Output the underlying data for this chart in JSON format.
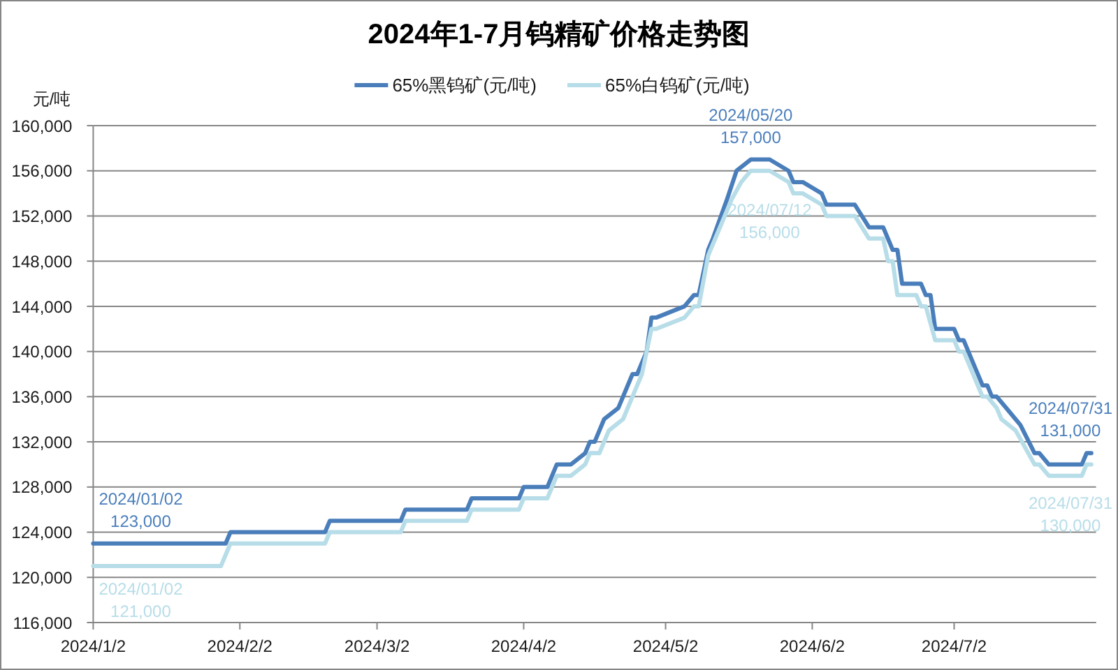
{
  "chart_data": {
    "type": "line",
    "title": "2024年1-7月钨精矿价格走势图",
    "ylabel": "元/吨",
    "series": [
      {
        "name": "65%黑钨矿(元/吨)",
        "color": "#4a7ebb",
        "x": [
          "2024-01-02",
          "2024-01-30",
          "2024-01-31",
          "2024-02-20",
          "2024-02-21",
          "2024-03-07",
          "2024-03-08",
          "2024-03-21",
          "2024-03-22",
          "2024-04-01",
          "2024-04-02",
          "2024-04-07",
          "2024-04-09",
          "2024-04-12",
          "2024-04-15",
          "2024-04-16",
          "2024-04-17",
          "2024-04-19",
          "2024-04-22",
          "2024-04-25",
          "2024-04-26",
          "2024-04-28",
          "2024-04-29",
          "2024-04-30",
          "2024-05-06",
          "2024-05-08",
          "2024-05-09",
          "2024-05-11",
          "2024-05-12",
          "2024-05-15",
          "2024-05-17",
          "2024-05-20",
          "2024-05-24",
          "2024-05-28",
          "2024-05-29",
          "2024-05-31",
          "2024-06-04",
          "2024-06-05",
          "2024-06-11",
          "2024-06-14",
          "2024-06-17",
          "2024-06-19",
          "2024-06-20",
          "2024-06-21",
          "2024-06-25",
          "2024-06-26",
          "2024-06-27",
          "2024-06-28",
          "2024-07-02",
          "2024-07-03",
          "2024-07-04",
          "2024-07-06",
          "2024-07-08",
          "2024-07-09",
          "2024-07-10",
          "2024-07-11",
          "2024-07-13",
          "2024-07-15",
          "2024-07-16",
          "2024-07-19",
          "2024-07-20",
          "2024-07-22",
          "2024-07-29",
          "2024-07-30",
          "2024-07-31"
        ],
        "values": [
          123000,
          123000,
          124000,
          124000,
          125000,
          125000,
          126000,
          126000,
          127000,
          127000,
          128000,
          128000,
          130000,
          130000,
          131000,
          132000,
          132000,
          134000,
          135000,
          138000,
          138000,
          140000,
          143000,
          143000,
          144000,
          145000,
          145000,
          149000,
          150000,
          153500,
          156000,
          157000,
          157000,
          156000,
          155000,
          155000,
          154000,
          153000,
          153000,
          151000,
          151000,
          149000,
          149000,
          146000,
          146000,
          145000,
          145000,
          142000,
          142000,
          141000,
          141000,
          139000,
          137000,
          137000,
          136000,
          136000,
          135000,
          134000,
          133500,
          131000,
          131000,
          130000,
          130000,
          131000,
          131000
        ]
      },
      {
        "name": "65%白钨矿(元/吨)",
        "color": "#b7dde8",
        "x": [
          "2024-01-02",
          "2024-01-29",
          "2024-01-31",
          "2024-02-20",
          "2024-02-21",
          "2024-03-07",
          "2024-03-08",
          "2024-03-21",
          "2024-03-22",
          "2024-04-01",
          "2024-04-02",
          "2024-04-07",
          "2024-04-09",
          "2024-04-12",
          "2024-04-15",
          "2024-04-16",
          "2024-04-18",
          "2024-04-20",
          "2024-04-23",
          "2024-04-26",
          "2024-04-27",
          "2024-04-29",
          "2024-04-30",
          "2024-05-06",
          "2024-05-08",
          "2024-05-09",
          "2024-05-11",
          "2024-05-13",
          "2024-05-16",
          "2024-05-18",
          "2024-05-20",
          "2024-05-24",
          "2024-05-28",
          "2024-05-29",
          "2024-05-31",
          "2024-06-04",
          "2024-06-05",
          "2024-06-11",
          "2024-06-14",
          "2024-06-17",
          "2024-06-18",
          "2024-06-19",
          "2024-06-20",
          "2024-06-24",
          "2024-06-25",
          "2024-06-26",
          "2024-06-28",
          "2024-07-02",
          "2024-07-03",
          "2024-07-04",
          "2024-07-06",
          "2024-07-08",
          "2024-07-09",
          "2024-07-11",
          "2024-07-12",
          "2024-07-15",
          "2024-07-19",
          "2024-07-20",
          "2024-07-22",
          "2024-07-29",
          "2024-07-30",
          "2024-07-31"
        ],
        "values": [
          121000,
          121000,
          123000,
          123000,
          124000,
          124000,
          125000,
          125000,
          126000,
          126000,
          127000,
          127000,
          129000,
          129000,
          130000,
          131000,
          131000,
          133000,
          134000,
          137000,
          138000,
          142000,
          142000,
          143000,
          144000,
          144000,
          148500,
          150500,
          153500,
          155000,
          156000,
          156000,
          155000,
          154000,
          154000,
          153000,
          152000,
          152000,
          150000,
          150000,
          148000,
          148000,
          145000,
          145000,
          144000,
          144000,
          141000,
          141000,
          140000,
          140000,
          138000,
          136000,
          136000,
          135000,
          134000,
          133000,
          130000,
          130000,
          129000,
          129000,
          130000,
          130000
        ]
      }
    ],
    "xlim": [
      "2024-01-02",
      "2024-08-01"
    ],
    "xticks": [
      {
        "value": "2024-01-02",
        "label": "2024/1/2"
      },
      {
        "value": "2024-02-02",
        "label": "2024/2/2"
      },
      {
        "value": "2024-03-02",
        "label": "2024/3/2"
      },
      {
        "value": "2024-04-02",
        "label": "2024/4/2"
      },
      {
        "value": "2024-05-02",
        "label": "2024/5/2"
      },
      {
        "value": "2024-06-02",
        "label": "2024/6/2"
      },
      {
        "value": "2024-07-02",
        "label": "2024/7/2"
      }
    ],
    "ylim": [
      116000,
      160000
    ],
    "yticks": [
      {
        "value": 116000,
        "label": "116,000"
      },
      {
        "value": 120000,
        "label": "120,000"
      },
      {
        "value": 124000,
        "label": "124,000"
      },
      {
        "value": 128000,
        "label": "128,000"
      },
      {
        "value": 132000,
        "label": "132,000"
      },
      {
        "value": 136000,
        "label": "136,000"
      },
      {
        "value": 140000,
        "label": "140,000"
      },
      {
        "value": 144000,
        "label": "144,000"
      },
      {
        "value": 148000,
        "label": "148,000"
      },
      {
        "value": 152000,
        "label": "152,000"
      },
      {
        "value": 156000,
        "label": "156,000"
      },
      {
        "value": 160000,
        "label": "160,000"
      }
    ],
    "grid": "y",
    "legend": "top",
    "line_style": "solid",
    "annotations": [
      {
        "text": "2024/01/02\n123,000",
        "x": "2024-01-02",
        "y": 123000
      },
      {
        "text": "2024/01/02\n121,000",
        "x": "2024-01-02",
        "y": 121000
      },
      {
        "text": "2024/05/20\n157,000",
        "x": "2024-05-20",
        "y": 157000
      },
      {
        "text": "2024/07/12\n156,000",
        "x": "2024-05-24",
        "y": 156000
      },
      {
        "text": "2024/07/31\n131,000",
        "x": "2024-07-31",
        "y": 131000
      },
      {
        "text": "2024/07/31\n130,000",
        "x": "2024-07-31",
        "y": 130000
      }
    ]
  }
}
